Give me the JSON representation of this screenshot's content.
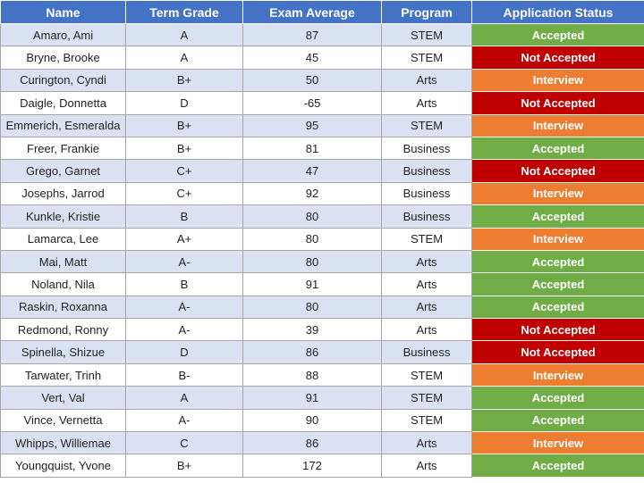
{
  "colors": {
    "header_bg": "#4472C4",
    "band_bg": "#D9E1F2",
    "accepted": "#70AD47",
    "not_accepted": "#C00000",
    "interview": "#ED7D31"
  },
  "headers": [
    "Name",
    "Term Grade",
    "Exam Average",
    "Program",
    "Application Status"
  ],
  "rows": [
    {
      "name": "Amaro, Ami",
      "grade": "A",
      "exam": "87",
      "program": "STEM",
      "status": "Accepted"
    },
    {
      "name": "Bryne, Brooke",
      "grade": "A",
      "exam": "45",
      "program": "STEM",
      "status": "Not Accepted"
    },
    {
      "name": "Curington, Cyndi",
      "grade": "B+",
      "exam": "50",
      "program": "Arts",
      "status": "Interview"
    },
    {
      "name": "Daigle, Donnetta",
      "grade": "D",
      "exam": "-65",
      "program": "Arts",
      "status": "Not Accepted"
    },
    {
      "name": "Emmerich, Esmeralda",
      "grade": "B+",
      "exam": "95",
      "program": "STEM",
      "status": "Interview"
    },
    {
      "name": "Freer, Frankie",
      "grade": "B+",
      "exam": "81",
      "program": "Business",
      "status": "Accepted"
    },
    {
      "name": "Grego, Garnet",
      "grade": "C+",
      "exam": "47",
      "program": "Business",
      "status": "Not Accepted"
    },
    {
      "name": "Josephs, Jarrod",
      "grade": "C+",
      "exam": "92",
      "program": "Business",
      "status": "Interview"
    },
    {
      "name": "Kunkle, Kristie",
      "grade": "B",
      "exam": "80",
      "program": "Business",
      "status": "Accepted"
    },
    {
      "name": "Lamarca, Lee",
      "grade": "A+",
      "exam": "80",
      "program": "STEM",
      "status": "Interview"
    },
    {
      "name": "Mai, Matt",
      "grade": "A-",
      "exam": "80",
      "program": "Arts",
      "status": "Accepted"
    },
    {
      "name": "Noland, Nila",
      "grade": "B",
      "exam": "91",
      "program": "Arts",
      "status": "Accepted"
    },
    {
      "name": "Raskin, Roxanna",
      "grade": "A-",
      "exam": "80",
      "program": "Arts",
      "status": "Accepted"
    },
    {
      "name": "Redmond, Ronny",
      "grade": "A-",
      "exam": "39",
      "program": "Arts",
      "status": "Not Accepted"
    },
    {
      "name": "Spinella, Shizue",
      "grade": "D",
      "exam": "86",
      "program": "Business",
      "status": "Not Accepted"
    },
    {
      "name": "Tarwater, Trinh",
      "grade": "B-",
      "exam": "88",
      "program": "STEM",
      "status": "Interview"
    },
    {
      "name": "Vert, Val",
      "grade": "A",
      "exam": "91",
      "program": "STEM",
      "status": "Accepted"
    },
    {
      "name": "Vince, Vernetta",
      "grade": "A-",
      "exam": "90",
      "program": "STEM",
      "status": "Accepted"
    },
    {
      "name": "Whipps, Williemae",
      "grade": "C",
      "exam": "86",
      "program": "Arts",
      "status": "Interview"
    },
    {
      "name": "Youngquist, Yvone",
      "grade": "B+",
      "exam": "172",
      "program": "Arts",
      "status": "Accepted"
    }
  ]
}
